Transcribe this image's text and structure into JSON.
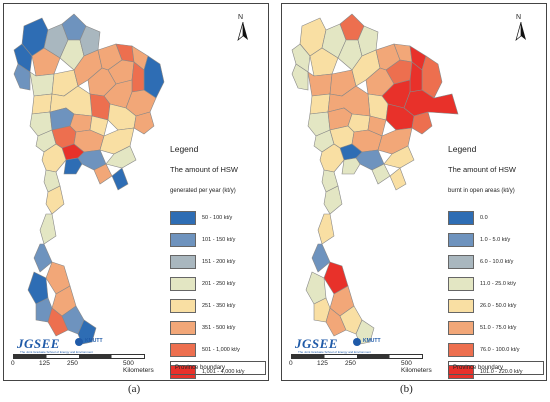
{
  "panel_a": {
    "north_letter": "N",
    "legend_title": "Legend",
    "heading": "The amount of HSW",
    "subheading": "generated per year (kt/y)",
    "items": [
      {
        "label": "50 - 100 kt/y",
        "color": "#2e6db4"
      },
      {
        "label": "101 - 150 kt/y",
        "color": "#6e93be"
      },
      {
        "label": "151 - 200 kt/y",
        "color": "#a9b7bf"
      },
      {
        "label": "201 - 250 kt/y",
        "color": "#e3e6c3"
      },
      {
        "label": "251 - 350 kt/y",
        "color": "#f9dfa3"
      },
      {
        "label": "351 - 500 kt/y",
        "color": "#f2a778"
      },
      {
        "label": "501 - 1,000 kt/y",
        "color": "#ed6f4f"
      },
      {
        "label": "1,001 - 4,000 kt/y",
        "color": "#e8312a"
      }
    ],
    "province_boundary": "Province boundary",
    "logo": "JGSEE",
    "logo_sub": "The Joint Graduate School of Energy and Environment",
    "logo2": "KMUTT",
    "scale_ticks": [
      "0",
      "125",
      "250",
      "500 Kilometers"
    ],
    "caption": "(a)"
  },
  "panel_b": {
    "north_letter": "N",
    "legend_title": "Legend",
    "heading": "The amount of HSW",
    "subheading": "burnt in open areas (kt/y)",
    "items": [
      {
        "label": "0.0",
        "color": "#2e6db4"
      },
      {
        "label": "1.0 - 5.0 kt/y",
        "color": "#6e93be"
      },
      {
        "label": "6.0 - 10.0 kt/y",
        "color": "#a9b7bf"
      },
      {
        "label": "11.0 - 25.0 kt/y",
        "color": "#e3e6c3"
      },
      {
        "label": "26.0 - 50.0 kt/y",
        "color": "#f9dfa3"
      },
      {
        "label": "51.0 - 75.0 kt/y",
        "color": "#f2a778"
      },
      {
        "label": "76.0 - 100.0 kt/y",
        "color": "#ed6f4f"
      },
      {
        "label": "101.0 - 220.0 kt/y",
        "color": "#e8312a"
      }
    ],
    "province_boundary": "Province boundary",
    "logo": "JGSEE",
    "logo_sub": "The Joint Graduate School of Energy and Environment",
    "logo2": "KMUTT",
    "scale_ticks": [
      "0",
      "125",
      "250",
      "500 Kilometers"
    ],
    "caption": "(b)"
  }
}
